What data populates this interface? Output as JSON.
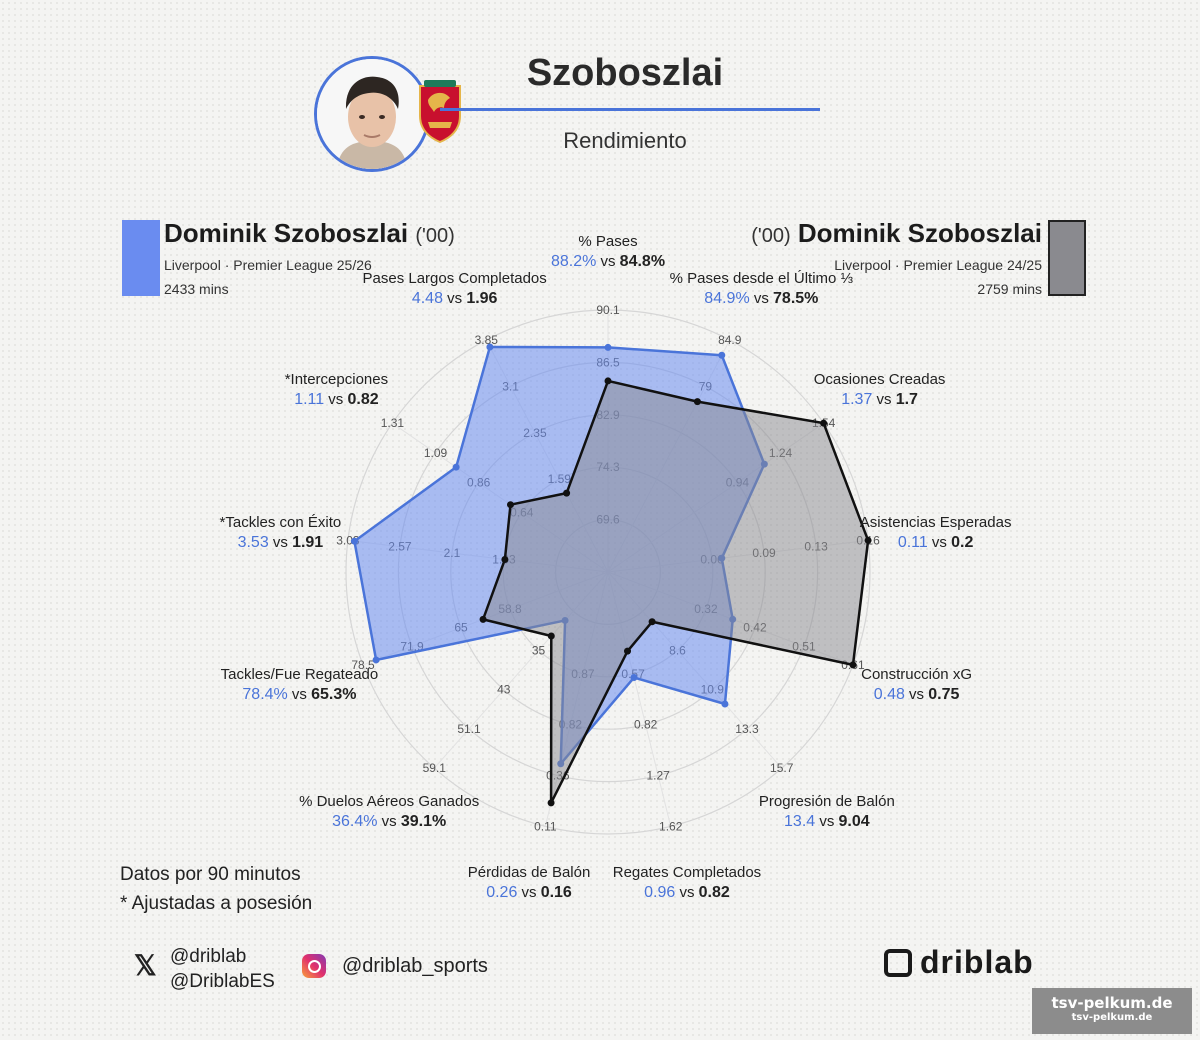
{
  "header": {
    "title": "Szoboszlai",
    "subtitle": "Rendimiento",
    "avatar_icon": "player-face-icon",
    "crest_icon": "liverpool-crest-icon"
  },
  "player1": {
    "name": "Dominik Szoboszlai",
    "year": "('00)",
    "competition": "Liverpool · Premier League 25/26",
    "minutes": "2433 mins",
    "color": "#6a8cf0"
  },
  "player2": {
    "name": "Dominik Szoboszlai",
    "year": "('00)",
    "competition": "Liverpool · Premier League 24/25",
    "minutes": "2759 mins",
    "color": "#8a8a8f"
  },
  "chart_data": {
    "type": "radar",
    "series": [
      {
        "name": "Dominik Szoboszlai · Liverpool · Premier League 25/26",
        "color": "#6a8cf0",
        "values": [
          88.2,
          84.9,
          1.37,
          0.11,
          0.48,
          13.4,
          0.96,
          0.26,
          36.4,
          78.4,
          3.53,
          1.11,
          4.48
        ]
      },
      {
        "name": "Dominik Szoboszlai · Liverpool · Premier League 24/25",
        "color": "#8a8a8f",
        "values": [
          84.8,
          78.5,
          1.7,
          0.2,
          0.75,
          9.04,
          0.82,
          0.16,
          39.1,
          65.3,
          1.91,
          0.82,
          1.96
        ]
      }
    ],
    "axes": [
      {
        "label": "% Pases",
        "v1": "88.2%",
        "v2": "84.8%",
        "min": 65.4,
        "max": 92,
        "ticks": [
          "69.6",
          "74.3",
          "82.9",
          "86.5",
          "90.1"
        ]
      },
      {
        "label": "% Pases desde el Último ⅓",
        "v1": "84.9%",
        "v2": "78.5%",
        "min": 55,
        "max": 87,
        "ticks": [
          "79",
          "84.9"
        ]
      },
      {
        "label": "Ocasiones Creadas",
        "v1": "1.37",
        "v2": "1.7",
        "min": 0.5,
        "max": 1.7,
        "ticks": [
          "0.94",
          "1.24",
          "1.54"
        ]
      },
      {
        "label": "Asistencias Esperadas",
        "v1": "0.11",
        "v2": "0.2",
        "min": 0.04,
        "max": 0.2,
        "ticks": [
          "0.06",
          "0.09",
          "0.13",
          "0.16"
        ]
      },
      {
        "label": "Construcción xG",
        "v1": "0.48",
        "v2": "0.75",
        "min": 0.2,
        "max": 0.75,
        "ticks": [
          "0.32",
          "0.42",
          "0.51",
          "0.61"
        ]
      },
      {
        "label": "Progresión de Balón",
        "v1": "13.4",
        "v2": "9.04",
        "min": 6.4,
        "max": 16.8,
        "ticks": [
          "8.6",
          "10.9",
          "13.3",
          "15.7"
        ]
      },
      {
        "label": "Regates Completados",
        "v1": "0.96",
        "v2": "0.82",
        "min": 0.4,
        "max": 1.75,
        "ticks": [
          "0.57",
          "0.82",
          "1.27",
          "1.62"
        ]
      },
      {
        "label": "Pérdidas de Balón",
        "v1": "0.26",
        "v2": "0.16",
        "min": 0.75,
        "max": 0.1,
        "ticks": [
          "0.87",
          "0.82",
          "0.36",
          "0.11"
        ]
      },
      {
        "label": "% Duelos Aéreos Ganados",
        "v1": "36.4%",
        "v2": "39.1%",
        "min": 28,
        "max": 62,
        "ticks": [
          "35",
          "43",
          "51.1",
          "59.1"
        ]
      },
      {
        "label": "Tackles/Fue Regateado",
        "v1": "78.4%",
        "v2": "65.3%",
        "min": 50,
        "max": 80,
        "ticks": [
          "58.8",
          "65",
          "71.9",
          "78.5"
        ]
      },
      {
        "label": "*Tackles con Éxito",
        "v1": "3.53",
        "v2": "1.91",
        "min": 0.8,
        "max": 3.6,
        "ticks": [
          "1.63",
          "2.1",
          "2.57",
          "3.03"
        ]
      },
      {
        "label": "*Intercepciones",
        "v1": "1.11",
        "v2": "0.82",
        "min": 0.3,
        "max": 1.45,
        "ticks": [
          "0.64",
          "0.86",
          "1.09",
          "1.31"
        ]
      },
      {
        "label": "Pases Largos Completados",
        "v1": "4.48",
        "v2": "1.96",
        "min": 0.6,
        "max": 4.6,
        "ticks": [
          "1.59",
          "2.35",
          "3.1",
          "3.85"
        ]
      }
    ]
  },
  "notes": {
    "line1": "Datos por 90 minutos",
    "line2": "* Ajustadas a posesión"
  },
  "social": {
    "x_icon": "x-logo-icon",
    "x_handle1": "@driblab",
    "x_handle2": "@DriblabES",
    "ig_icon": "instagram-icon",
    "ig_handle": "@driblab_sports"
  },
  "brand": "driblab",
  "watermark": {
    "line1": "tsv-pelkum.de",
    "line2": "tsv-pelkum.de"
  }
}
